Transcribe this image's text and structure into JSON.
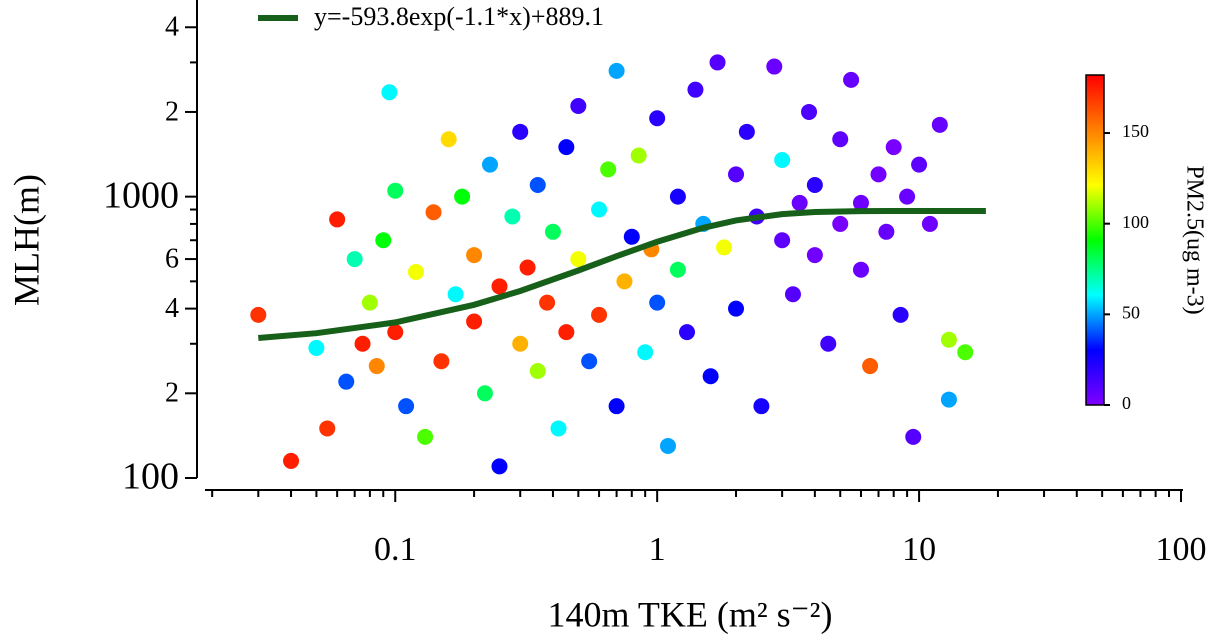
{
  "chart_data": {
    "type": "scatter",
    "x_label": "140m TKE (m² s⁻²)",
    "y_label": "MLH(m)",
    "x_scale": "log",
    "y_scale": "log",
    "xlim": [
      0.0175,
      100
    ],
    "xticks": [
      {
        "value": 0.1,
        "label": "0.1"
      },
      1,
      10,
      100
    ],
    "x_minor_ticks": [
      0.02,
      0.03,
      0.04,
      0.05,
      0.06,
      0.07,
      0.08,
      0.09,
      0.2,
      0.3,
      0.4,
      0.5,
      0.6,
      0.7,
      0.8,
      0.9,
      2,
      3,
      4,
      5,
      6,
      7,
      8,
      9,
      20,
      30,
      40,
      50,
      60,
      70,
      80,
      90
    ],
    "ylim": [
      100,
      5000
    ],
    "yticks": [
      100,
      {
        "value": 200,
        "label": "2"
      },
      {
        "value": 400,
        "label": "4"
      },
      {
        "value": 600,
        "label": "6"
      },
      1000,
      {
        "value": 2000,
        "label": "2"
      },
      {
        "value": 4000,
        "label": "4"
      }
    ],
    "y_minor_ticks": [
      300,
      500,
      700,
      800,
      900,
      3000
    ],
    "colorbar": {
      "label": "PM2.5(ug m-3)",
      "clim": [
        0,
        182
      ],
      "ticks": [
        0,
        50,
        100,
        150
      ],
      "colormap": [
        "#7f00ff",
        "#0000ff",
        "#00ffff",
        "#00ff00",
        "#ffff00",
        "#ff8000",
        "#ff0000"
      ]
    },
    "series": [
      {
        "name": "points",
        "x": [
          0.03,
          0.04,
          0.05,
          0.055,
          0.06,
          0.065,
          0.07,
          0.075,
          0.08,
          0.085,
          0.09,
          0.095,
          0.1,
          0.1,
          0.11,
          0.12,
          0.13,
          0.14,
          0.15,
          0.16,
          0.17,
          0.18,
          0.2,
          0.2,
          0.22,
          0.23,
          0.25,
          0.25,
          0.28,
          0.3,
          0.3,
          0.32,
          0.35,
          0.35,
          0.38,
          0.4,
          0.42,
          0.45,
          0.45,
          0.5,
          0.5,
          0.55,
          0.6,
          0.6,
          0.65,
          0.7,
          0.7,
          0.75,
          0.8,
          0.85,
          0.9,
          0.95,
          1.0,
          1.0,
          1.1,
          1.2,
          1.2,
          1.3,
          1.4,
          1.5,
          1.6,
          1.7,
          1.8,
          2.0,
          2.0,
          2.2,
          2.4,
          2.5,
          2.8,
          3.0,
          3.0,
          3.3,
          3.5,
          3.8,
          4.0,
          4.0,
          4.5,
          5.0,
          5.0,
          5.5,
          6.0,
          6.0,
          6.5,
          7.0,
          7.5,
          8.0,
          8.5,
          9.0,
          9.5,
          10,
          11,
          12,
          13,
          13,
          15
        ],
        "values": [
          380,
          115,
          290,
          150,
          830,
          220,
          600,
          300,
          420,
          250,
          700,
          2350,
          1050,
          330,
          180,
          540,
          140,
          880,
          260,
          1600,
          450,
          1000,
          360,
          620,
          200,
          1300,
          480,
          110,
          850,
          300,
          1700,
          560,
          1100,
          240,
          420,
          750,
          150,
          1500,
          330,
          2100,
          600,
          260,
          900,
          380,
          1250,
          180,
          2800,
          500,
          720,
          1400,
          280,
          650,
          1900,
          420,
          130,
          1000,
          550,
          330,
          2400,
          800,
          230,
          3000,
          660,
          1200,
          400,
          1700,
          850,
          180,
          2900,
          700,
          1350,
          450,
          950,
          2000,
          620,
          1100,
          300,
          800,
          1600,
          2600,
          550,
          950,
          250,
          1200,
          750,
          1500,
          380,
          1000,
          140,
          1300,
          800,
          1800,
          310,
          190,
          280
        ],
        "c": [
          170,
          175,
          60,
          170,
          175,
          40,
          70,
          175,
          110,
          150,
          90,
          60,
          80,
          175,
          40,
          120,
          100,
          160,
          170,
          130,
          60,
          90,
          175,
          150,
          80,
          50,
          175,
          30,
          70,
          140,
          20,
          175,
          40,
          110,
          170,
          80,
          60,
          30,
          175,
          15,
          120,
          40,
          60,
          170,
          100,
          30,
          50,
          140,
          30,
          110,
          60,
          150,
          20,
          40,
          50,
          25,
          80,
          20,
          15,
          50,
          30,
          10,
          120,
          10,
          30,
          20,
          15,
          25,
          5,
          8,
          60,
          10,
          5,
          12,
          3,
          20,
          15,
          2,
          8,
          6,
          5,
          4,
          160,
          3,
          6,
          2,
          20,
          5,
          10,
          8,
          4,
          6,
          110,
          50,
          100
        ]
      },
      {
        "name": "y=-593.8exp(-1.1*x)+889.1",
        "type": "line",
        "color": "#17601a",
        "x": [
          0.03,
          0.05,
          0.1,
          0.2,
          0.3,
          0.5,
          0.7,
          1,
          1.5,
          2,
          3,
          4,
          6,
          10,
          18
        ],
        "values": [
          314.6,
          327.1,
          357.2,
          412.6,
          462.2,
          546.5,
          614.2,
          691.4,
          775.1,
          823.3,
          867.2,
          881.8,
          888.3,
          889.1,
          889.1
        ]
      }
    ]
  }
}
